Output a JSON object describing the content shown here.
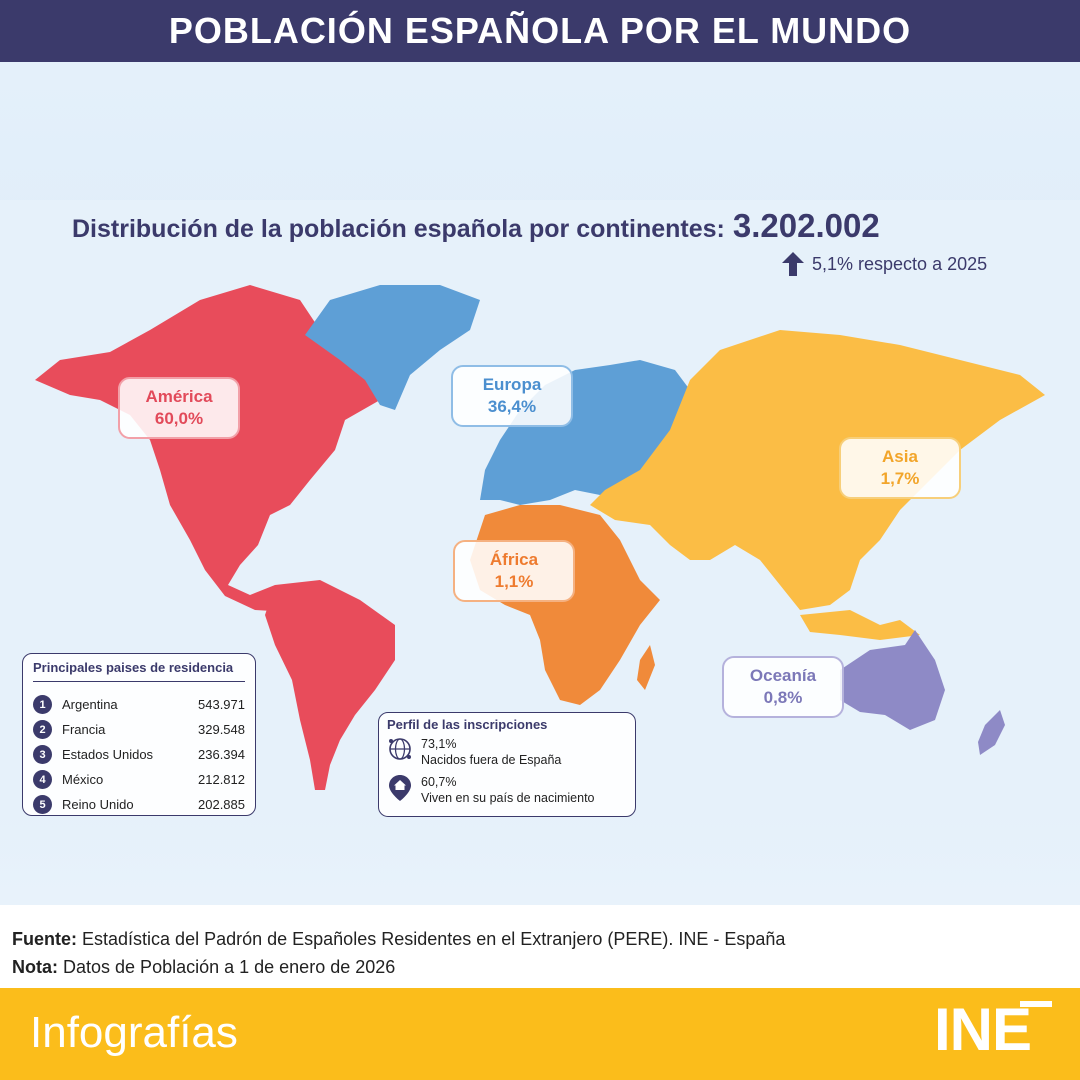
{
  "header": {
    "title": "POBLACIÓN ESPAÑOLA POR EL MUNDO"
  },
  "distribution": {
    "title": "Distribución de la población española por continentes:",
    "total": "3.202.002",
    "growth": "5,1% respecto a 2025",
    "growth_icon": "arrow-up-icon"
  },
  "continents": {
    "america": {
      "name": "América",
      "value": "60,0%",
      "color": "#e84c5b"
    },
    "europa": {
      "name": "Europa",
      "value": "36,4%",
      "color": "#5e9fd6"
    },
    "asia": {
      "name": "Asia",
      "value": "1,7%",
      "color": "#fbbd45"
    },
    "africa": {
      "name": "África",
      "value": "1,1%",
      "color": "#f08a3a"
    },
    "oceania": {
      "name": "Oceanía",
      "value": "0,8%",
      "color": "#8e8ac6"
    }
  },
  "countries": {
    "title": "Principales paises de residencia",
    "items": [
      {
        "rank": "1",
        "name": "Argentina",
        "value": "543.971"
      },
      {
        "rank": "2",
        "name": "Francia",
        "value": "329.548"
      },
      {
        "rank": "3",
        "name": "Estados Unidos",
        "value": "236.394"
      },
      {
        "rank": "4",
        "name": "México",
        "value": "212.812"
      },
      {
        "rank": "5",
        "name": "Reino Unido",
        "value": "202.885"
      }
    ]
  },
  "profile": {
    "title": "Perfil de las inscripciones",
    "items": [
      {
        "pct": "73,1%",
        "text": "Nacidos fuera de España",
        "icon": "globe-icon"
      },
      {
        "pct": "60,7%",
        "text": "Viven en su país de nacimiento",
        "icon": "home-pin-icon"
      }
    ]
  },
  "footer": {
    "source_label": "Fuente:",
    "source_text": "Estadística del Padrón de Españoles Residentes en el Extranjero (PERE). INE - España",
    "note_label": "Nota:",
    "note_text": "Datos de Población a 1 de enero de 2026"
  },
  "bottom": {
    "title": "Infografías",
    "logo": "INE"
  }
}
